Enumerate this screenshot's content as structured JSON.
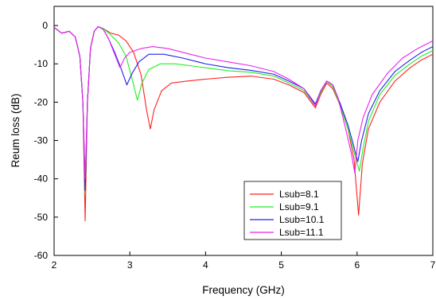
{
  "chart_data": {
    "type": "line",
    "title": "",
    "xlabel": "Frequency (GHz)",
    "ylabel": "Reum loss (dB)",
    "xlim": [
      2,
      7
    ],
    "ylim": [
      -60,
      5
    ],
    "x_ticks": [
      2,
      3,
      4,
      5,
      6,
      7
    ],
    "y_ticks": [
      0,
      -10,
      -20,
      -30,
      -40,
      -50,
      -60
    ],
    "grid": false,
    "legend_position": "bottom-right",
    "series": [
      {
        "name": "Lsub=8.1",
        "color": "#ff2020",
        "points": [
          [
            2.0,
            -0.5
          ],
          [
            2.1,
            -2.0
          ],
          [
            2.2,
            -1.5
          ],
          [
            2.28,
            -3.0
          ],
          [
            2.34,
            -8.0
          ],
          [
            2.38,
            -20.0
          ],
          [
            2.41,
            -51.0
          ],
          [
            2.44,
            -20.0
          ],
          [
            2.48,
            -6.0
          ],
          [
            2.53,
            -1.5
          ],
          [
            2.58,
            -0.3
          ],
          [
            2.65,
            -0.8
          ],
          [
            2.75,
            -2.0
          ],
          [
            2.85,
            -2.5
          ],
          [
            2.95,
            -4.0
          ],
          [
            3.05,
            -7.0
          ],
          [
            3.15,
            -13.0
          ],
          [
            3.22,
            -22.0
          ],
          [
            3.27,
            -27.0
          ],
          [
            3.32,
            -22.0
          ],
          [
            3.42,
            -17.0
          ],
          [
            3.55,
            -15.0
          ],
          [
            3.75,
            -14.5
          ],
          [
            4.0,
            -14.0
          ],
          [
            4.3,
            -13.5
          ],
          [
            4.6,
            -13.2
          ],
          [
            4.9,
            -14.0
          ],
          [
            5.1,
            -15.5
          ],
          [
            5.3,
            -17.5
          ],
          [
            5.45,
            -21.5
          ],
          [
            5.52,
            -18.0
          ],
          [
            5.6,
            -15.0
          ],
          [
            5.68,
            -16.5
          ],
          [
            5.78,
            -21.0
          ],
          [
            5.88,
            -27.0
          ],
          [
            5.96,
            -35.0
          ],
          [
            6.02,
            -49.5
          ],
          [
            6.07,
            -36.0
          ],
          [
            6.15,
            -27.0
          ],
          [
            6.3,
            -20.0
          ],
          [
            6.5,
            -14.5
          ],
          [
            6.7,
            -11.0
          ],
          [
            6.85,
            -9.0
          ],
          [
            7.0,
            -7.5
          ]
        ]
      },
      {
        "name": "Lsub=9.1",
        "color": "#20ee20",
        "points": [
          [
            2.0,
            -0.5
          ],
          [
            2.1,
            -2.0
          ],
          [
            2.2,
            -1.5
          ],
          [
            2.28,
            -3.0
          ],
          [
            2.34,
            -8.0
          ],
          [
            2.38,
            -20.0
          ],
          [
            2.41,
            -44.0
          ],
          [
            2.44,
            -20.0
          ],
          [
            2.48,
            -6.0
          ],
          [
            2.53,
            -1.5
          ],
          [
            2.58,
            -0.3
          ],
          [
            2.65,
            -0.8
          ],
          [
            2.75,
            -2.5
          ],
          [
            2.85,
            -4.5
          ],
          [
            2.95,
            -8.0
          ],
          [
            3.03,
            -14.0
          ],
          [
            3.1,
            -19.5
          ],
          [
            3.16,
            -15.0
          ],
          [
            3.25,
            -11.5
          ],
          [
            3.4,
            -10.0
          ],
          [
            3.6,
            -10.0
          ],
          [
            3.8,
            -10.5
          ],
          [
            4.0,
            -11.0
          ],
          [
            4.3,
            -11.8
          ],
          [
            4.6,
            -12.2
          ],
          [
            4.9,
            -13.2
          ],
          [
            5.1,
            -15.0
          ],
          [
            5.3,
            -17.0
          ],
          [
            5.45,
            -21.0
          ],
          [
            5.52,
            -17.5
          ],
          [
            5.6,
            -14.5
          ],
          [
            5.68,
            -16.0
          ],
          [
            5.78,
            -21.0
          ],
          [
            5.88,
            -27.0
          ],
          [
            5.96,
            -33.0
          ],
          [
            6.03,
            -38.0
          ],
          [
            6.08,
            -32.0
          ],
          [
            6.15,
            -25.0
          ],
          [
            6.3,
            -18.0
          ],
          [
            6.5,
            -13.0
          ],
          [
            6.7,
            -10.0
          ],
          [
            6.85,
            -8.0
          ],
          [
            7.0,
            -6.5
          ]
        ]
      },
      {
        "name": "Lsub=10.1",
        "color": "#2020ee",
        "points": [
          [
            2.0,
            -0.5
          ],
          [
            2.1,
            -2.0
          ],
          [
            2.2,
            -1.5
          ],
          [
            2.28,
            -3.0
          ],
          [
            2.34,
            -8.0
          ],
          [
            2.38,
            -20.0
          ],
          [
            2.41,
            -43.0
          ],
          [
            2.44,
            -20.0
          ],
          [
            2.48,
            -6.0
          ],
          [
            2.53,
            -1.5
          ],
          [
            2.58,
            -0.3
          ],
          [
            2.65,
            -1.0
          ],
          [
            2.72,
            -3.5
          ],
          [
            2.8,
            -7.0
          ],
          [
            2.88,
            -11.0
          ],
          [
            2.96,
            -15.5
          ],
          [
            3.03,
            -12.5
          ],
          [
            3.12,
            -9.5
          ],
          [
            3.25,
            -7.5
          ],
          [
            3.45,
            -7.5
          ],
          [
            3.7,
            -8.5
          ],
          [
            4.0,
            -10.0
          ],
          [
            4.3,
            -11.0
          ],
          [
            4.6,
            -11.7
          ],
          [
            4.9,
            -12.7
          ],
          [
            5.1,
            -14.5
          ],
          [
            5.3,
            -16.5
          ],
          [
            5.45,
            -20.5
          ],
          [
            5.52,
            -17.0
          ],
          [
            5.6,
            -14.5
          ],
          [
            5.68,
            -15.5
          ],
          [
            5.78,
            -20.5
          ],
          [
            5.88,
            -26.0
          ],
          [
            5.95,
            -31.0
          ],
          [
            6.01,
            -35.5
          ],
          [
            6.06,
            -30.0
          ],
          [
            6.15,
            -23.0
          ],
          [
            6.3,
            -17.0
          ],
          [
            6.5,
            -12.0
          ],
          [
            6.7,
            -9.0
          ],
          [
            6.85,
            -7.0
          ],
          [
            7.0,
            -5.5
          ]
        ]
      },
      {
        "name": "Lsub=11.1",
        "color": "#ee20ee",
        "points": [
          [
            2.0,
            -0.5
          ],
          [
            2.1,
            -2.0
          ],
          [
            2.2,
            -1.5
          ],
          [
            2.28,
            -3.0
          ],
          [
            2.34,
            -8.0
          ],
          [
            2.38,
            -20.0
          ],
          [
            2.41,
            -40.0
          ],
          [
            2.44,
            -20.0
          ],
          [
            2.48,
            -6.0
          ],
          [
            2.53,
            -1.5
          ],
          [
            2.58,
            -0.3
          ],
          [
            2.65,
            -1.0
          ],
          [
            2.72,
            -3.5
          ],
          [
            2.8,
            -7.5
          ],
          [
            2.87,
            -11.0
          ],
          [
            2.93,
            -8.5
          ],
          [
            3.0,
            -7.0
          ],
          [
            3.15,
            -6.0
          ],
          [
            3.3,
            -5.5
          ],
          [
            3.5,
            -6.0
          ],
          [
            3.7,
            -7.0
          ],
          [
            4.0,
            -8.5
          ],
          [
            4.3,
            -9.5
          ],
          [
            4.6,
            -10.5
          ],
          [
            4.9,
            -12.0
          ],
          [
            5.1,
            -14.0
          ],
          [
            5.3,
            -16.5
          ],
          [
            5.45,
            -21.0
          ],
          [
            5.52,
            -17.0
          ],
          [
            5.6,
            -14.5
          ],
          [
            5.68,
            -15.5
          ],
          [
            5.75,
            -19.0
          ],
          [
            5.85,
            -27.0
          ],
          [
            5.92,
            -33.0
          ],
          [
            5.97,
            -38.5
          ],
          [
            6.01,
            -30.0
          ],
          [
            6.08,
            -24.0
          ],
          [
            6.2,
            -18.0
          ],
          [
            6.4,
            -12.5
          ],
          [
            6.6,
            -8.5
          ],
          [
            6.8,
            -6.0
          ],
          [
            7.0,
            -4.0
          ]
        ]
      }
    ]
  }
}
